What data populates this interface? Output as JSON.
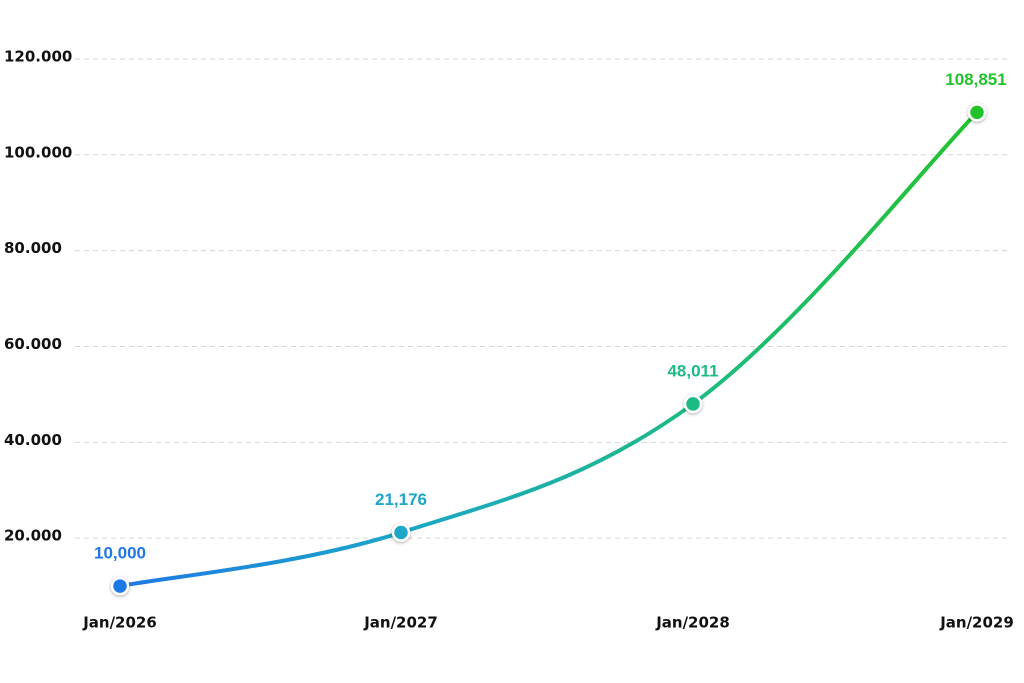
{
  "chart_data": {
    "type": "line",
    "categories": [
      "Jan/2026",
      "Jan/2027",
      "Jan/2028",
      "Jan/2029"
    ],
    "values": [
      10000,
      21176,
      48011,
      108851
    ],
    "value_labels": [
      "10,000",
      "21,176",
      "48,011",
      "108,851"
    ],
    "colors": [
      "#1f78e6",
      "#1ba6c8",
      "#1dbb84",
      "#22c32c"
    ],
    "ylim": [
      0,
      125000
    ],
    "yticks": [
      {
        "value": 20000,
        "label": "20.000"
      },
      {
        "value": 40000,
        "label": "40.000"
      },
      {
        "value": 60000,
        "label": "60.000"
      },
      {
        "value": 80000,
        "label": "80.000"
      },
      {
        "value": 100000,
        "label": "100.000"
      },
      {
        "value": 120000,
        "label": "120.000"
      }
    ],
    "grid": true
  }
}
